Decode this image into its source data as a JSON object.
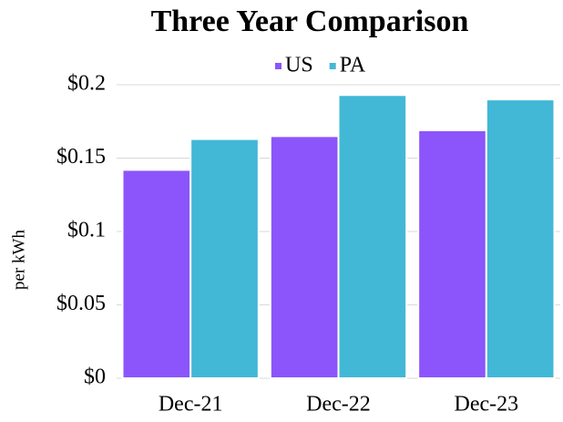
{
  "chart_data": {
    "type": "bar",
    "title": "Three Year Comparison",
    "y_label": "per kWh",
    "categories": [
      "Dec-21",
      "Dec-22",
      "Dec-23"
    ],
    "series": [
      {
        "name": "US",
        "color": "#8b55fb",
        "values": [
          0.142,
          0.165,
          0.169
        ]
      },
      {
        "name": "PA",
        "color": "#42b8d6",
        "values": [
          0.163,
          0.193,
          0.19
        ]
      }
    ],
    "ylim": [
      0,
      0.2
    ],
    "yticks": [
      {
        "value": 0,
        "label": "$0"
      },
      {
        "value": 0.05,
        "label": "$0.05"
      },
      {
        "value": 0.1,
        "label": "$0.1"
      },
      {
        "value": 0.15,
        "label": "$0.15"
      },
      {
        "value": 0.2,
        "label": "$0.2"
      }
    ],
    "grid": true,
    "legend": "top"
  }
}
